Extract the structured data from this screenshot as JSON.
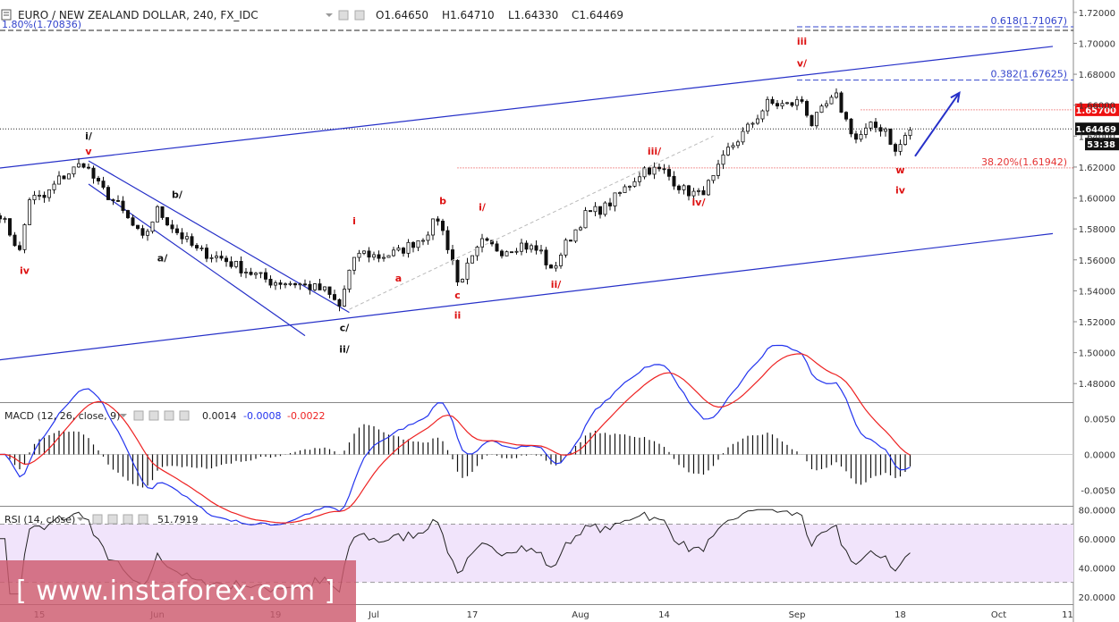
{
  "header": {
    "title": "EURO / NEW ZEALAND DOLLAR, 240, FX_IDC",
    "ohlc": [
      "O1.64650",
      "H1.64710",
      "L1.64330",
      "C1.64469"
    ]
  },
  "colors": {
    "candles": "#111111",
    "channel": "#2630c8",
    "fib_blue": "#3344cc",
    "fib_red": "#e53333",
    "macd_line": "#2233ee",
    "signal_line": "#ee2222",
    "rsi_band": "#f1e4fb",
    "wave_red": "#dd1111",
    "wave_black": "#111111"
  },
  "watermark": "[ www.instaforex.com ]",
  "chart_data": [
    {
      "type": "candlestick",
      "pane": "price",
      "yticks": [
        1.48,
        1.5,
        1.52,
        1.54,
        1.56,
        1.58,
        1.6,
        1.62,
        1.64,
        1.66,
        1.68,
        1.7,
        1.72
      ],
      "ytick_labels": [
        "1.48000",
        "1.50000",
        "1.52000",
        "1.54000",
        "1.56000",
        "1.58000",
        "1.60000",
        "1.62000",
        "1.64000",
        "1.66000",
        "1.68000",
        "1.70000",
        "1.72000"
      ],
      "ylim": [
        1.468,
        1.728
      ],
      "xticks": [
        {
          "label": "15",
          "bar": 8
        },
        {
          "label": "Jun",
          "bar": 32
        },
        {
          "label": "19",
          "bar": 56
        },
        {
          "label": "Jul",
          "bar": 76
        },
        {
          "label": "17",
          "bar": 96
        },
        {
          "label": "Aug",
          "bar": 118
        },
        {
          "label": "14",
          "bar": 135
        },
        {
          "label": "Sep",
          "bar": 162
        },
        {
          "label": "18",
          "bar": 183
        },
        {
          "label": "Oct",
          "bar": 203
        },
        {
          "label": "11",
          "bar": 217
        }
      ],
      "bars_total": 226,
      "anchors": [
        [
          0,
          1.59
        ],
        [
          4,
          1.565
        ],
        [
          6,
          1.6
        ],
        [
          9,
          1.6
        ],
        [
          12,
          1.612
        ],
        [
          17,
          1.623
        ],
        [
          20,
          1.608
        ],
        [
          24,
          1.595
        ],
        [
          29,
          1.573
        ],
        [
          32,
          1.592
        ],
        [
          36,
          1.578
        ],
        [
          40,
          1.566
        ],
        [
          45,
          1.561
        ],
        [
          50,
          1.553
        ],
        [
          55,
          1.546
        ],
        [
          60,
          1.545
        ],
        [
          66,
          1.54
        ],
        [
          69,
          1.53
        ],
        [
          71,
          1.552
        ],
        [
          73,
          1.565
        ],
        [
          77,
          1.562
        ],
        [
          81,
          1.565
        ],
        [
          86,
          1.575
        ],
        [
          89,
          1.587
        ],
        [
          92,
          1.56
        ],
        [
          93,
          1.545
        ],
        [
          96,
          1.56
        ],
        [
          98,
          1.571
        ],
        [
          102,
          1.566
        ],
        [
          106,
          1.57
        ],
        [
          110,
          1.565
        ],
        [
          112,
          1.552
        ],
        [
          115,
          1.57
        ],
        [
          119,
          1.589
        ],
        [
          123,
          1.594
        ],
        [
          127,
          1.606
        ],
        [
          131,
          1.619
        ],
        [
          135,
          1.617
        ],
        [
          139,
          1.605
        ],
        [
          142,
          1.602
        ],
        [
          145,
          1.612
        ],
        [
          148,
          1.631
        ],
        [
          152,
          1.645
        ],
        [
          156,
          1.661
        ],
        [
          160,
          1.66
        ],
        [
          163,
          1.663
        ],
        [
          165,
          1.648
        ],
        [
          168,
          1.66
        ],
        [
          170,
          1.665
        ],
        [
          172,
          1.65
        ],
        [
          174,
          1.638
        ],
        [
          177,
          1.646
        ],
        [
          180,
          1.645
        ],
        [
          182,
          1.629
        ],
        [
          184,
          1.64
        ],
        [
          185,
          1.644
        ]
      ],
      "last_price": "1.64469",
      "countdown": "53:38",
      "levels": [
        {
          "name": "1.80%(1.70836)",
          "value": 1.70836,
          "style": "dashed",
          "color": "black",
          "label_color": "blue"
        },
        {
          "name": "0.618(1.71067)",
          "value": 1.71067,
          "style": "dashed",
          "color": "blue"
        },
        {
          "name": "0.382(1.67625)",
          "value": 1.67625,
          "style": "dashed",
          "color": "blue"
        },
        {
          "name": "38.20%(1.61942)",
          "value": 1.61942,
          "style": "dotted",
          "color": "red"
        },
        {
          "name": "1.65700",
          "value": 1.657,
          "style": "dotted",
          "color": "red",
          "badge": true
        },
        {
          "name": "1.64469",
          "value": 1.64469,
          "style": "dotted",
          "color": "black",
          "badge": true
        }
      ],
      "channels": [
        {
          "name": "upper",
          "from": [
            -1,
            1.619
          ],
          "to": [
            214,
            1.698
          ]
        },
        {
          "name": "lower",
          "from": [
            -1,
            1.495
          ],
          "to": [
            214,
            1.577
          ]
        },
        {
          "name": "down-upper",
          "from": [
            18,
            1.624
          ],
          "to": [
            71,
            1.526
          ]
        },
        {
          "name": "down-lower",
          "from": [
            18,
            1.609
          ],
          "to": [
            62,
            1.511
          ]
        }
      ],
      "arrow": {
        "from": [
          186,
          1.627
        ],
        "to": [
          195,
          1.668
        ]
      },
      "wave_labels": [
        {
          "text": "iv",
          "bar": 5,
          "price": 1.551,
          "color": "red"
        },
        {
          "text": "v",
          "bar": 18,
          "price": 1.628,
          "color": "red"
        },
        {
          "text": "i/",
          "bar": 18,
          "price": 1.638,
          "color": "black"
        },
        {
          "text": "b/",
          "bar": 36,
          "price": 1.6,
          "color": "black"
        },
        {
          "text": "a/",
          "bar": 33,
          "price": 1.559,
          "color": "black"
        },
        {
          "text": "c/",
          "bar": 70,
          "price": 1.514,
          "color": "black"
        },
        {
          "text": "ii/",
          "bar": 70,
          "price": 1.5,
          "color": "black"
        },
        {
          "text": "i",
          "bar": 72,
          "price": 1.583,
          "color": "red"
        },
        {
          "text": "a",
          "bar": 81,
          "price": 1.546,
          "color": "red"
        },
        {
          "text": "b",
          "bar": 90,
          "price": 1.596,
          "color": "red"
        },
        {
          "text": "c",
          "bar": 93,
          "price": 1.535,
          "color": "red"
        },
        {
          "text": "ii",
          "bar": 93,
          "price": 1.522,
          "color": "red"
        },
        {
          "text": "i/",
          "bar": 98,
          "price": 1.592,
          "color": "red"
        },
        {
          "text": "ii/",
          "bar": 113,
          "price": 1.542,
          "color": "red"
        },
        {
          "text": "iii/",
          "bar": 133,
          "price": 1.628,
          "color": "red"
        },
        {
          "text": "iv/",
          "bar": 142,
          "price": 1.595,
          "color": "red"
        },
        {
          "text": "iii",
          "bar": 163,
          "price": 1.699,
          "color": "red"
        },
        {
          "text": "v/",
          "bar": 163,
          "price": 1.685,
          "color": "red"
        },
        {
          "text": "w",
          "bar": 183,
          "price": 1.616,
          "color": "red"
        },
        {
          "text": "iv",
          "bar": 183,
          "price": 1.603,
          "color": "red"
        }
      ]
    },
    {
      "type": "line",
      "pane": "macd",
      "name": "MACD (12, 26, close, 9)",
      "values": [
        "0.0014",
        "-0.0008",
        "-0.0022"
      ],
      "value_colors": [
        "#111111",
        "#2233ee",
        "#ee2222"
      ],
      "yticks": [
        0.005,
        0.0,
        -0.005
      ],
      "ytick_labels": [
        "0.0050",
        "0.0000",
        "-0.0050"
      ],
      "ylim": [
        -0.0072,
        0.0072
      ]
    },
    {
      "type": "line",
      "pane": "rsi",
      "name": "RSI (14, close)",
      "value": "51.7919",
      "yticks": [
        20,
        40,
        60,
        80
      ],
      "ytick_labels": [
        "20.0000",
        "40.0000",
        "60.0000",
        "80.0000"
      ],
      "ylim": [
        15,
        82
      ],
      "band": [
        30,
        70
      ]
    }
  ]
}
